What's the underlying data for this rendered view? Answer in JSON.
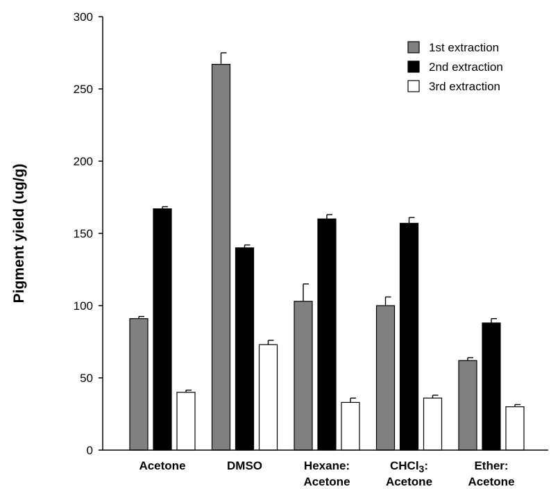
{
  "chart_data": {
    "type": "bar",
    "title": "",
    "xlabel": "",
    "ylabel": "Pigment yield (ug/g)",
    "ylim": [
      0,
      300
    ],
    "yticks": [
      0,
      50,
      100,
      150,
      200,
      250,
      300
    ],
    "categories": [
      {
        "line1": "Acetone",
        "line2": "",
        "sub": ""
      },
      {
        "line1": "DMSO",
        "line2": "",
        "sub": ""
      },
      {
        "line1": "Hexane:",
        "line2": "Acetone",
        "sub": ""
      },
      {
        "line1": "CHCl",
        "line2": "Acetone",
        "sub": "3",
        "line1_suffix": ":"
      },
      {
        "line1": "Ether:",
        "line2": "Acetone",
        "sub": ""
      }
    ],
    "series": [
      {
        "name": "1st extraction",
        "color": "#808080",
        "values": [
          91,
          267,
          103,
          100,
          62
        ],
        "errors": [
          1.5,
          8,
          12,
          6,
          2
        ]
      },
      {
        "name": "2nd extraction",
        "color": "#000000",
        "values": [
          167,
          140,
          160,
          157,
          88
        ],
        "errors": [
          1.5,
          2,
          3,
          4,
          3
        ]
      },
      {
        "name": "3rd extraction",
        "color": "#ffffff",
        "values": [
          40,
          73,
          33,
          36,
          30
        ],
        "errors": [
          1.5,
          3,
          3,
          2,
          1.5
        ]
      }
    ],
    "legend_position": "top-right",
    "grid": false
  }
}
